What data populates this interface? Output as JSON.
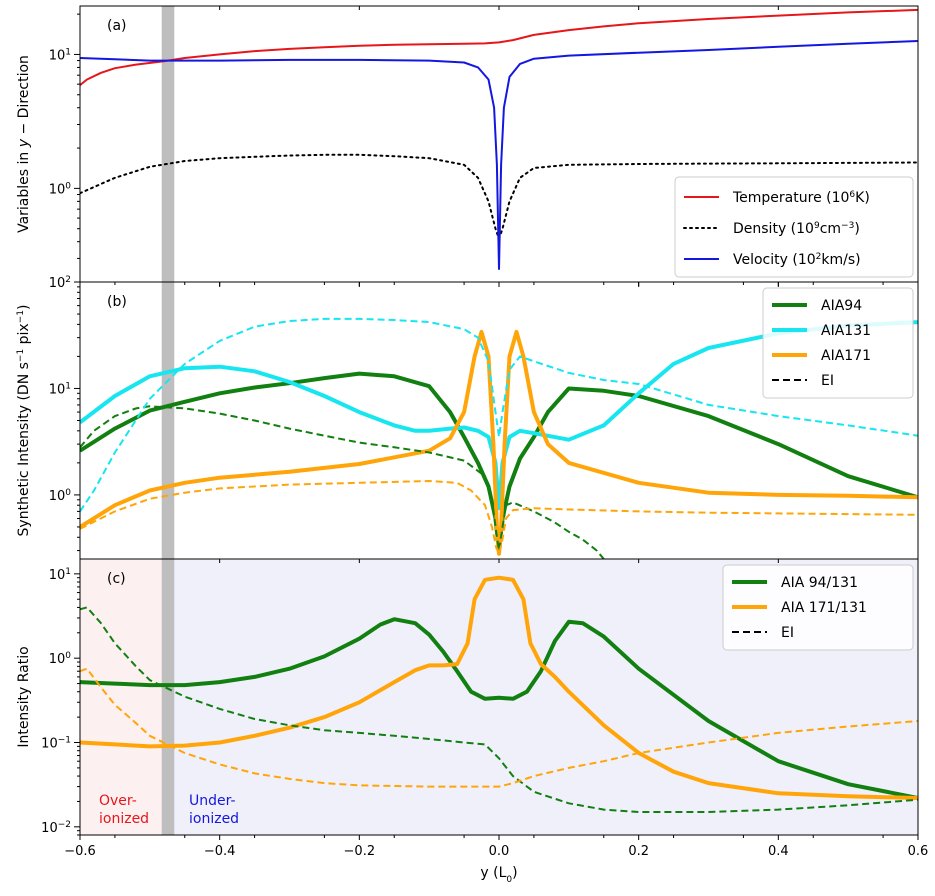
{
  "chart_data": [
    {
      "panel_label": "(a)",
      "type": "line",
      "ylabel": "Variables in y − Direction",
      "yscale": "log",
      "ylim": [
        0.2,
        23
      ],
      "yticks": [
        {
          "value": 1,
          "base": "10",
          "exp": "0"
        },
        {
          "value": 10,
          "base": "10",
          "exp": "1"
        }
      ],
      "shared_x_range": [
        -0.6,
        0.6
      ],
      "legend_position": "lower right",
      "series": [
        {
          "name": "Temperature (10^6 K)",
          "legend": {
            "pre": "Temperature (10",
            "sup": "6",
            "post": "K)"
          },
          "color": "#e6161a",
          "style": "solid",
          "width": 2,
          "x": [
            -0.6,
            -0.59,
            -0.57,
            -0.55,
            -0.52,
            -0.48,
            -0.45,
            -0.4,
            -0.35,
            -0.3,
            -0.25,
            -0.2,
            -0.15,
            -0.1,
            -0.05,
            -0.02,
            0.0,
            0.02,
            0.05,
            0.1,
            0.15,
            0.2,
            0.3,
            0.4,
            0.5,
            0.6
          ],
          "y": [
            5.9,
            6.5,
            7.3,
            7.9,
            8.4,
            8.9,
            9.4,
            10.0,
            10.6,
            11.0,
            11.3,
            11.6,
            11.8,
            11.9,
            12.0,
            12.1,
            12.3,
            12.8,
            14.0,
            15.2,
            16.2,
            17.1,
            18.4,
            19.5,
            20.6,
            21.5
          ]
        },
        {
          "name": "Density (10^9 cm^-3)",
          "legend": {
            "pre": "Density (10",
            "sup": "9",
            "post": "cm",
            "sup2": "−3",
            "post2": ")"
          },
          "color": "#000000",
          "style": "dotted",
          "width": 2,
          "x": [
            -0.6,
            -0.55,
            -0.5,
            -0.45,
            -0.4,
            -0.35,
            -0.3,
            -0.25,
            -0.2,
            -0.15,
            -0.1,
            -0.05,
            -0.03,
            -0.015,
            -0.005,
            0.0,
            0.005,
            0.015,
            0.03,
            0.05,
            0.1,
            0.2,
            0.3,
            0.4,
            0.5,
            0.6
          ],
          "y": [
            0.92,
            1.2,
            1.45,
            1.6,
            1.68,
            1.72,
            1.76,
            1.78,
            1.78,
            1.74,
            1.68,
            1.5,
            1.2,
            0.8,
            0.5,
            0.42,
            0.5,
            0.8,
            1.2,
            1.42,
            1.5,
            1.52,
            1.53,
            1.54,
            1.55,
            1.56
          ]
        },
        {
          "name": "Velocity (10^2 km/s)",
          "legend": {
            "pre": "Velocity (10",
            "sup": "2",
            "post": "km/s)"
          },
          "color": "#1417e0",
          "style": "solid",
          "width": 2,
          "x": [
            -0.6,
            -0.55,
            -0.5,
            -0.45,
            -0.4,
            -0.3,
            -0.2,
            -0.1,
            -0.05,
            -0.03,
            -0.015,
            -0.007,
            -0.003,
            0.0,
            0.003,
            0.007,
            0.015,
            0.03,
            0.05,
            0.1,
            0.2,
            0.3,
            0.4,
            0.5,
            0.6
          ],
          "y": [
            9.4,
            9.2,
            9.0,
            9.0,
            9.0,
            9.1,
            9.1,
            9.0,
            8.7,
            8.0,
            6.5,
            4.0,
            1.5,
            0.25,
            1.5,
            4.0,
            6.8,
            8.5,
            9.3,
            9.8,
            10.3,
            10.8,
            11.4,
            12.0,
            12.6
          ]
        }
      ]
    },
    {
      "panel_label": "(b)",
      "type": "line",
      "ylabel": "Synthetic Intensity (DN s⁻¹ pix⁻¹)",
      "ylabel_parts": {
        "a": "Synthetic Intensity (DN s",
        "sup1": "−1",
        "b": " pix",
        "sup2": "−1",
        "c": ")"
      },
      "yscale": "log",
      "ylim": [
        0.25,
        100
      ],
      "yticks": [
        {
          "value": 1,
          "base": "10",
          "exp": "0"
        },
        {
          "value": 10,
          "base": "10",
          "exp": "1"
        },
        {
          "value": 100,
          "base": "10",
          "exp": "2"
        }
      ],
      "legend_position": "upper right",
      "legend": [
        "AIA94",
        "AIA131",
        "AIA171",
        "EI"
      ],
      "series": [
        {
          "name": "AIA94",
          "color": "#118011",
          "style": "solid",
          "width": 4,
          "x": [
            -0.6,
            -0.55,
            -0.5,
            -0.45,
            -0.4,
            -0.35,
            -0.3,
            -0.25,
            -0.2,
            -0.15,
            -0.1,
            -0.07,
            -0.05,
            -0.03,
            -0.015,
            -0.005,
            0.0,
            0.005,
            0.015,
            0.03,
            0.05,
            0.07,
            0.1,
            0.15,
            0.2,
            0.3,
            0.4,
            0.5,
            0.6
          ],
          "y": [
            2.6,
            4.2,
            6.2,
            7.5,
            9.0,
            10.2,
            11.2,
            12.5,
            13.8,
            13.0,
            10.5,
            6.0,
            3.5,
            2.0,
            1.2,
            0.6,
            0.3,
            0.6,
            1.2,
            2.2,
            3.5,
            6.0,
            10.0,
            9.5,
            8.5,
            5.5,
            3.0,
            1.5,
            0.95
          ]
        },
        {
          "name": "AIA131",
          "color": "#17e6f0",
          "style": "solid",
          "width": 4,
          "x": [
            -0.6,
            -0.55,
            -0.5,
            -0.45,
            -0.4,
            -0.35,
            -0.3,
            -0.25,
            -0.2,
            -0.15,
            -0.12,
            -0.1,
            -0.07,
            -0.05,
            -0.03,
            -0.015,
            -0.005,
            0.0,
            0.005,
            0.015,
            0.03,
            0.05,
            0.1,
            0.15,
            0.2,
            0.25,
            0.3,
            0.4,
            0.5,
            0.6
          ],
          "y": [
            4.8,
            8.5,
            13.0,
            15.5,
            16.0,
            14.5,
            11.5,
            8.5,
            6.0,
            4.5,
            4.0,
            4.0,
            4.2,
            4.3,
            4.0,
            3.5,
            2.0,
            0.75,
            2.0,
            3.5,
            4.0,
            3.8,
            3.3,
            4.5,
            9.0,
            17.0,
            24.0,
            33.0,
            39.0,
            42.0
          ]
        },
        {
          "name": "AIA171",
          "color": "#ffa50a",
          "style": "solid",
          "width": 4,
          "x": [
            -0.6,
            -0.55,
            -0.5,
            -0.45,
            -0.4,
            -0.3,
            -0.2,
            -0.1,
            -0.07,
            -0.05,
            -0.035,
            -0.025,
            -0.015,
            -0.008,
            -0.003,
            0.0,
            0.003,
            0.008,
            0.015,
            0.025,
            0.035,
            0.05,
            0.07,
            0.1,
            0.2,
            0.3,
            0.4,
            0.5,
            0.6
          ],
          "y": [
            0.5,
            0.8,
            1.1,
            1.3,
            1.45,
            1.65,
            1.95,
            2.6,
            3.4,
            6.0,
            20.0,
            34.0,
            20.0,
            3.0,
            0.5,
            0.28,
            0.5,
            3.0,
            20.0,
            34.0,
            20.0,
            6.0,
            3.0,
            2.0,
            1.3,
            1.05,
            1.0,
            0.98,
            0.95
          ]
        },
        {
          "name": "AIA94 EI",
          "color": "#118011",
          "style": "dashed",
          "width": 2,
          "x": [
            -0.6,
            -0.58,
            -0.55,
            -0.52,
            -0.5,
            -0.45,
            -0.4,
            -0.35,
            -0.3,
            -0.25,
            -0.2,
            -0.15,
            -0.1,
            -0.05,
            -0.02,
            -0.01,
            -0.004,
            0.0,
            0.004,
            0.01,
            0.02,
            0.05,
            0.08,
            0.1,
            0.12,
            0.14,
            0.15
          ],
          "y": [
            2.8,
            4.0,
            5.5,
            6.5,
            6.8,
            6.5,
            5.8,
            5.0,
            4.2,
            3.6,
            3.1,
            2.8,
            2.5,
            2.1,
            1.5,
            0.9,
            0.45,
            0.3,
            0.45,
            0.8,
            0.85,
            0.7,
            0.55,
            0.45,
            0.38,
            0.3,
            0.25
          ]
        },
        {
          "name": "AIA131 EI",
          "color": "#17e6f0",
          "style": "dashed",
          "width": 2,
          "x": [
            -0.6,
            -0.58,
            -0.55,
            -0.5,
            -0.45,
            -0.4,
            -0.35,
            -0.3,
            -0.25,
            -0.2,
            -0.15,
            -0.1,
            -0.05,
            -0.03,
            -0.015,
            -0.005,
            0.0,
            0.005,
            0.015,
            0.03,
            0.05,
            0.1,
            0.15,
            0.2,
            0.3,
            0.4,
            0.5,
            0.6
          ],
          "y": [
            0.7,
            1.1,
            2.5,
            8.0,
            17.0,
            28.0,
            38.0,
            43.0,
            45.0,
            45.0,
            44.0,
            42.0,
            36.0,
            30.0,
            18.0,
            6.0,
            3.5,
            6.0,
            15.0,
            20.0,
            18.0,
            14.0,
            12.0,
            11.0,
            7.0,
            5.5,
            4.5,
            3.6
          ]
        },
        {
          "name": "AIA171 EI",
          "color": "#ffa50a",
          "style": "dashed",
          "width": 2,
          "x": [
            -0.6,
            -0.55,
            -0.5,
            -0.45,
            -0.4,
            -0.3,
            -0.2,
            -0.1,
            -0.06,
            -0.04,
            -0.02,
            -0.01,
            -0.004,
            0.0,
            0.004,
            0.01,
            0.02,
            0.05,
            0.1,
            0.2,
            0.3,
            0.4,
            0.5,
            0.6
          ],
          "y": [
            0.48,
            0.7,
            0.92,
            1.05,
            1.15,
            1.25,
            1.3,
            1.35,
            1.3,
            1.1,
            0.8,
            0.5,
            0.32,
            0.28,
            0.35,
            0.6,
            0.72,
            0.75,
            0.73,
            0.7,
            0.68,
            0.67,
            0.66,
            0.65
          ]
        }
      ]
    },
    {
      "panel_label": "(c)",
      "type": "line",
      "ylabel": "Intensity Ratio",
      "yscale": "log",
      "ylim": [
        0.008,
        15
      ],
      "yticks": [
        {
          "value": 0.01,
          "base": "10",
          "exp": "−2"
        },
        {
          "value": 0.1,
          "base": "10",
          "exp": "−1"
        },
        {
          "value": 1,
          "base": "10",
          "exp": "0"
        },
        {
          "value": 10,
          "base": "10",
          "exp": "1"
        }
      ],
      "xlabel": "y (L₀)",
      "xlabel_parts": {
        "a": "y (L",
        "sub": "0",
        "b": ")"
      },
      "xticks": [
        {
          "value": -0.6,
          "label": "−0.6"
        },
        {
          "value": -0.4,
          "label": "−0.4"
        },
        {
          "value": -0.2,
          "label": "−0.2"
        },
        {
          "value": 0.0,
          "label": "0.0"
        },
        {
          "value": 0.2,
          "label": "0.2"
        },
        {
          "value": 0.4,
          "label": "0.4"
        },
        {
          "value": 0.6,
          "label": "0.6"
        }
      ],
      "legend_position": "upper right",
      "legend": [
        "AIA 94/131",
        "AIA 171/131",
        "EI"
      ],
      "region_labels": {
        "over": [
          "Over-",
          "ionized"
        ],
        "under": [
          "Under-",
          "ionized"
        ],
        "over_color": "#e6161a",
        "under_color": "#1417e0"
      },
      "region_fills": {
        "over": "#fdf0f0",
        "under": "#f0f0fa",
        "divider_x": -0.475
      },
      "series": [
        {
          "name": "AIA 94/131",
          "color": "#118011",
          "style": "solid",
          "width": 4,
          "x": [
            -0.6,
            -0.55,
            -0.5,
            -0.45,
            -0.4,
            -0.35,
            -0.3,
            -0.25,
            -0.2,
            -0.17,
            -0.15,
            -0.12,
            -0.1,
            -0.08,
            -0.06,
            -0.04,
            -0.02,
            0.0,
            0.02,
            0.04,
            0.06,
            0.08,
            0.1,
            0.12,
            0.15,
            0.2,
            0.3,
            0.4,
            0.5,
            0.6
          ],
          "y": [
            0.52,
            0.5,
            0.48,
            0.48,
            0.52,
            0.6,
            0.75,
            1.05,
            1.7,
            2.5,
            2.9,
            2.6,
            1.9,
            1.2,
            0.7,
            0.4,
            0.33,
            0.34,
            0.33,
            0.4,
            0.7,
            1.6,
            2.7,
            2.6,
            1.8,
            0.75,
            0.18,
            0.06,
            0.032,
            0.022
          ]
        },
        {
          "name": "AIA 171/131",
          "color": "#ffa50a",
          "style": "solid",
          "width": 4,
          "x": [
            -0.6,
            -0.55,
            -0.5,
            -0.45,
            -0.4,
            -0.35,
            -0.3,
            -0.25,
            -0.2,
            -0.15,
            -0.12,
            -0.1,
            -0.08,
            -0.06,
            -0.045,
            -0.035,
            -0.02,
            0.0,
            0.02,
            0.035,
            0.045,
            0.06,
            0.08,
            0.1,
            0.15,
            0.2,
            0.25,
            0.3,
            0.4,
            0.5,
            0.6
          ],
          "y": [
            0.1,
            0.095,
            0.09,
            0.092,
            0.1,
            0.12,
            0.15,
            0.2,
            0.3,
            0.52,
            0.72,
            0.82,
            0.82,
            0.85,
            1.5,
            5.0,
            8.5,
            9.0,
            8.5,
            5.0,
            1.5,
            0.85,
            0.6,
            0.4,
            0.16,
            0.075,
            0.045,
            0.033,
            0.025,
            0.023,
            0.022
          ]
        },
        {
          "name": "AIA 94/131 EI",
          "color": "#118011",
          "style": "dashed",
          "width": 2,
          "x": [
            -0.6,
            -0.59,
            -0.57,
            -0.55,
            -0.52,
            -0.5,
            -0.45,
            -0.4,
            -0.35,
            -0.3,
            -0.25,
            -0.2,
            -0.15,
            -0.1,
            -0.05,
            -0.02,
            0.0,
            0.02,
            0.05,
            0.1,
            0.15,
            0.2,
            0.3,
            0.4,
            0.5,
            0.6
          ],
          "y": [
            3.8,
            4.0,
            2.6,
            1.5,
            0.8,
            0.55,
            0.35,
            0.25,
            0.19,
            0.16,
            0.14,
            0.13,
            0.12,
            0.11,
            0.1,
            0.095,
            0.065,
            0.04,
            0.026,
            0.019,
            0.016,
            0.015,
            0.015,
            0.016,
            0.018,
            0.021
          ]
        },
        {
          "name": "AIA 171/131 EI",
          "color": "#ffa50a",
          "style": "dashed",
          "width": 2,
          "x": [
            -0.6,
            -0.59,
            -0.57,
            -0.55,
            -0.52,
            -0.5,
            -0.45,
            -0.4,
            -0.35,
            -0.3,
            -0.25,
            -0.2,
            -0.1,
            -0.02,
            0.0,
            0.02,
            0.05,
            0.1,
            0.15,
            0.2,
            0.3,
            0.4,
            0.5,
            0.6
          ],
          "y": [
            0.7,
            0.75,
            0.45,
            0.28,
            0.17,
            0.12,
            0.075,
            0.055,
            0.043,
            0.037,
            0.033,
            0.031,
            0.03,
            0.03,
            0.03,
            0.033,
            0.04,
            0.05,
            0.06,
            0.075,
            0.1,
            0.13,
            0.155,
            0.18
          ]
        }
      ]
    }
  ],
  "shaded_band": {
    "x0": -0.483,
    "x1": -0.465,
    "color": "#bebebe"
  }
}
